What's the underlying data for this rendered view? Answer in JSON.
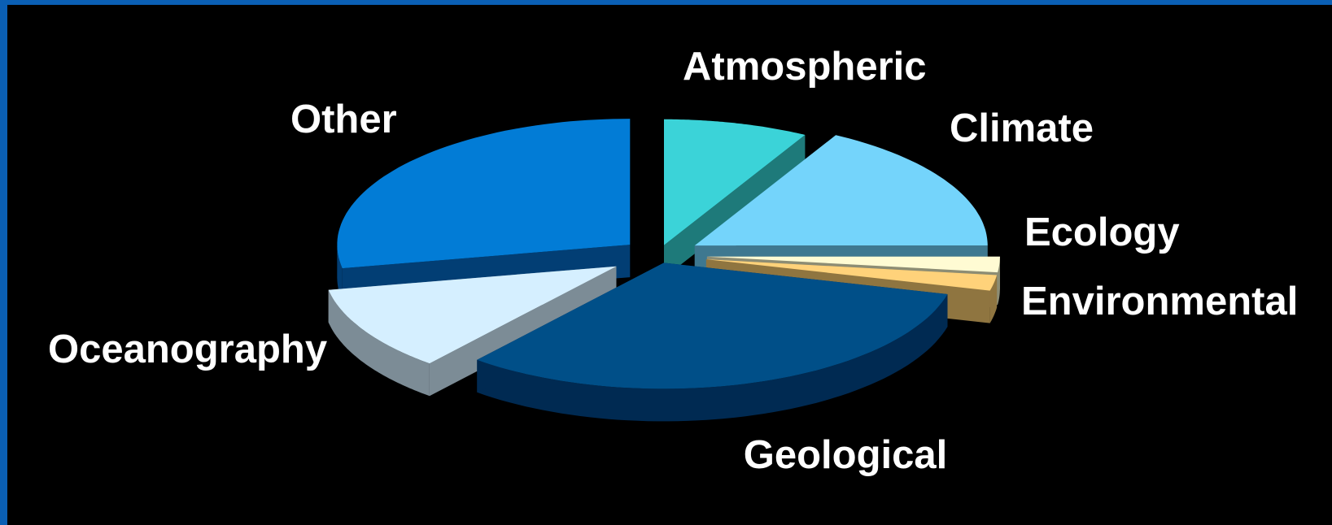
{
  "chart_data": {
    "type": "pie",
    "style": "3d-exploded",
    "legend": "none",
    "slices": [
      {
        "label": "Atmospheric",
        "value": 8,
        "color": "#3bd3d8",
        "side_color": "#1e7a7a"
      },
      {
        "label": "Climate",
        "value": 17,
        "color": "#74d4fb",
        "side_color": "#3e7890"
      },
      {
        "label": "Ecology",
        "value": 2,
        "color": "#fffbd3",
        "side_color": "#8d8d74"
      },
      {
        "label": "Environmental",
        "value": 2,
        "color": "#ffd27a",
        "side_color": "#8f7540"
      },
      {
        "label": "Geological",
        "value": 32,
        "color": "#004f88",
        "side_color": "#002a52"
      },
      {
        "label": "Oceanography",
        "value": 11,
        "color": "#d5efff",
        "side_color": "#7c8c96"
      },
      {
        "label": "Other",
        "value": 28,
        "color": "#027cd6",
        "side_color": "#023e74"
      }
    ]
  }
}
